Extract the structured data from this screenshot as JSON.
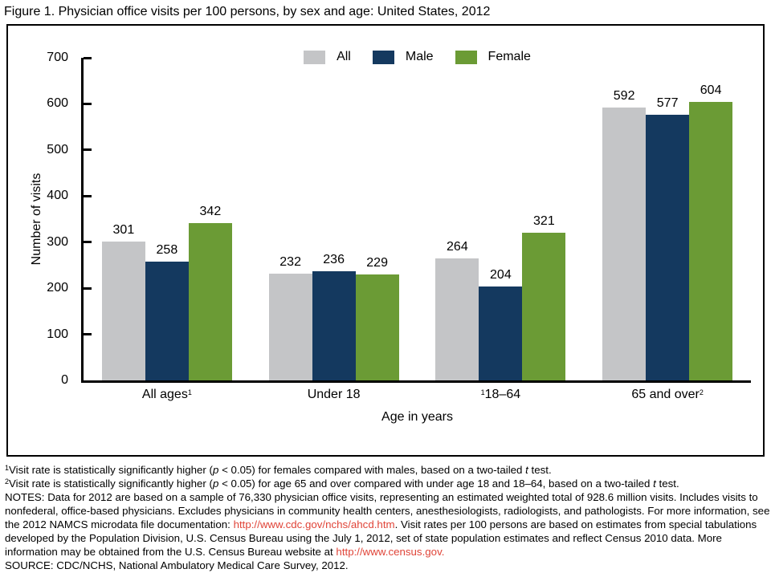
{
  "title": "Figure 1. Physician office visits per 100 persons, by sex and age: United States, 2012",
  "colors": {
    "all": "#c4c5c7",
    "male": "#14395f",
    "female": "#6b9b35",
    "link": "#e04438",
    "axis": "#000000",
    "background": "#ffffff"
  },
  "chart_data": {
    "type": "bar",
    "title": "Figure 1. Physician office visits per 100 persons, by sex and age: United States, 2012",
    "xlabel": "Age in years",
    "ylabel": "Number of visits",
    "ylim": [
      0,
      700
    ],
    "yticks": [
      0,
      100,
      200,
      300,
      400,
      500,
      600,
      700
    ],
    "grid": false,
    "legend_position": "top-center",
    "bar_value_labels": true,
    "categories": [
      {
        "label": "All ages",
        "sup": "1",
        "sup_pos": "after"
      },
      {
        "label": "Under 18",
        "sup": "",
        "sup_pos": ""
      },
      {
        "label": "18–64",
        "sup": "1",
        "sup_pos": "before"
      },
      {
        "label": "65 and over",
        "sup": "2",
        "sup_pos": "after"
      }
    ],
    "series": [
      {
        "name": "All",
        "color": "#c4c5c7",
        "values": [
          301,
          232,
          264,
          592
        ]
      },
      {
        "name": "Male",
        "color": "#14395f",
        "values": [
          258,
          236,
          204,
          577
        ]
      },
      {
        "name": "Female",
        "color": "#6b9b35",
        "values": [
          342,
          229,
          321,
          604
        ]
      }
    ]
  },
  "footnotes": {
    "lines": [
      [
        {
          "t": "1",
          "s": "sup"
        },
        {
          "t": "Visit rate is statistically significantly higher ("
        },
        {
          "t": "p",
          "s": "i"
        },
        {
          "t": " < 0.05) for females compared with males, based on a two-tailed "
        },
        {
          "t": "t",
          "s": "i"
        },
        {
          "t": " test."
        }
      ],
      [
        {
          "t": "2",
          "s": "sup"
        },
        {
          "t": "Visit rate is statistically significantly higher ("
        },
        {
          "t": "p",
          "s": "i"
        },
        {
          "t": " < 0.05) for age 65 and over compared with under age 18 and 18–64, based on a two-tailed "
        },
        {
          "t": "t",
          "s": "i"
        },
        {
          "t": " test."
        }
      ],
      [
        {
          "t": "NOTES: Data for 2012 are based on a sample of 76,330 physician office visits, representing an estimated weighted total of 928.6 million visits. Includes visits to"
        }
      ],
      [
        {
          "t": "nonfederal, office-based physicians. Excludes physicians in community health centers, anesthesiologists, radiologists, and pathologists. For more information, see"
        }
      ],
      [
        {
          "t": "the 2012 NAMCS microdata file documentation: "
        },
        {
          "t": "http://www.cdc.gov/nchs/ahcd.htm",
          "s": "link"
        },
        {
          "t": ". Visit rates per 100 persons are based on estimates from special tabulations"
        }
      ],
      [
        {
          "t": "developed by the Population Division, U.S. Census Bureau using the July 1, 2012, set of state population estimates and reflect Census 2010 data. More"
        }
      ],
      [
        {
          "t": "information may be obtained from the U.S. Census Bureau website at "
        },
        {
          "t": "http://www.census.gov.",
          "s": "link"
        }
      ],
      [
        {
          "t": "SOURCE: CDC/NCHS, National Ambulatory Medical Care Survey, 2012."
        }
      ]
    ]
  }
}
